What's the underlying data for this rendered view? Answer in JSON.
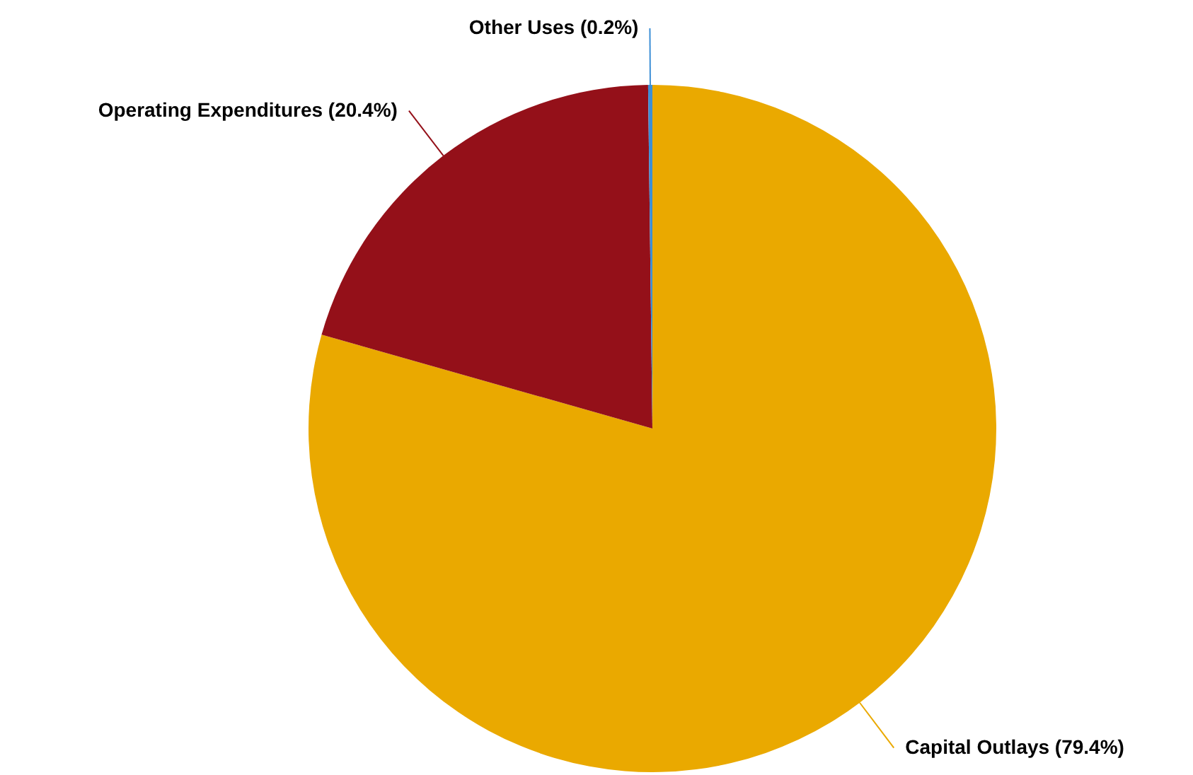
{
  "chart_data": {
    "type": "pie",
    "categories": [
      "Capital Outlays (79.4%)",
      "Operating Expenditures (20.4%)",
      "Other Uses (0.2%)"
    ],
    "values": [
      79.4,
      20.4,
      0.2
    ],
    "colors": [
      "#eaa900",
      "#941019",
      "#3d8fd6"
    ]
  }
}
